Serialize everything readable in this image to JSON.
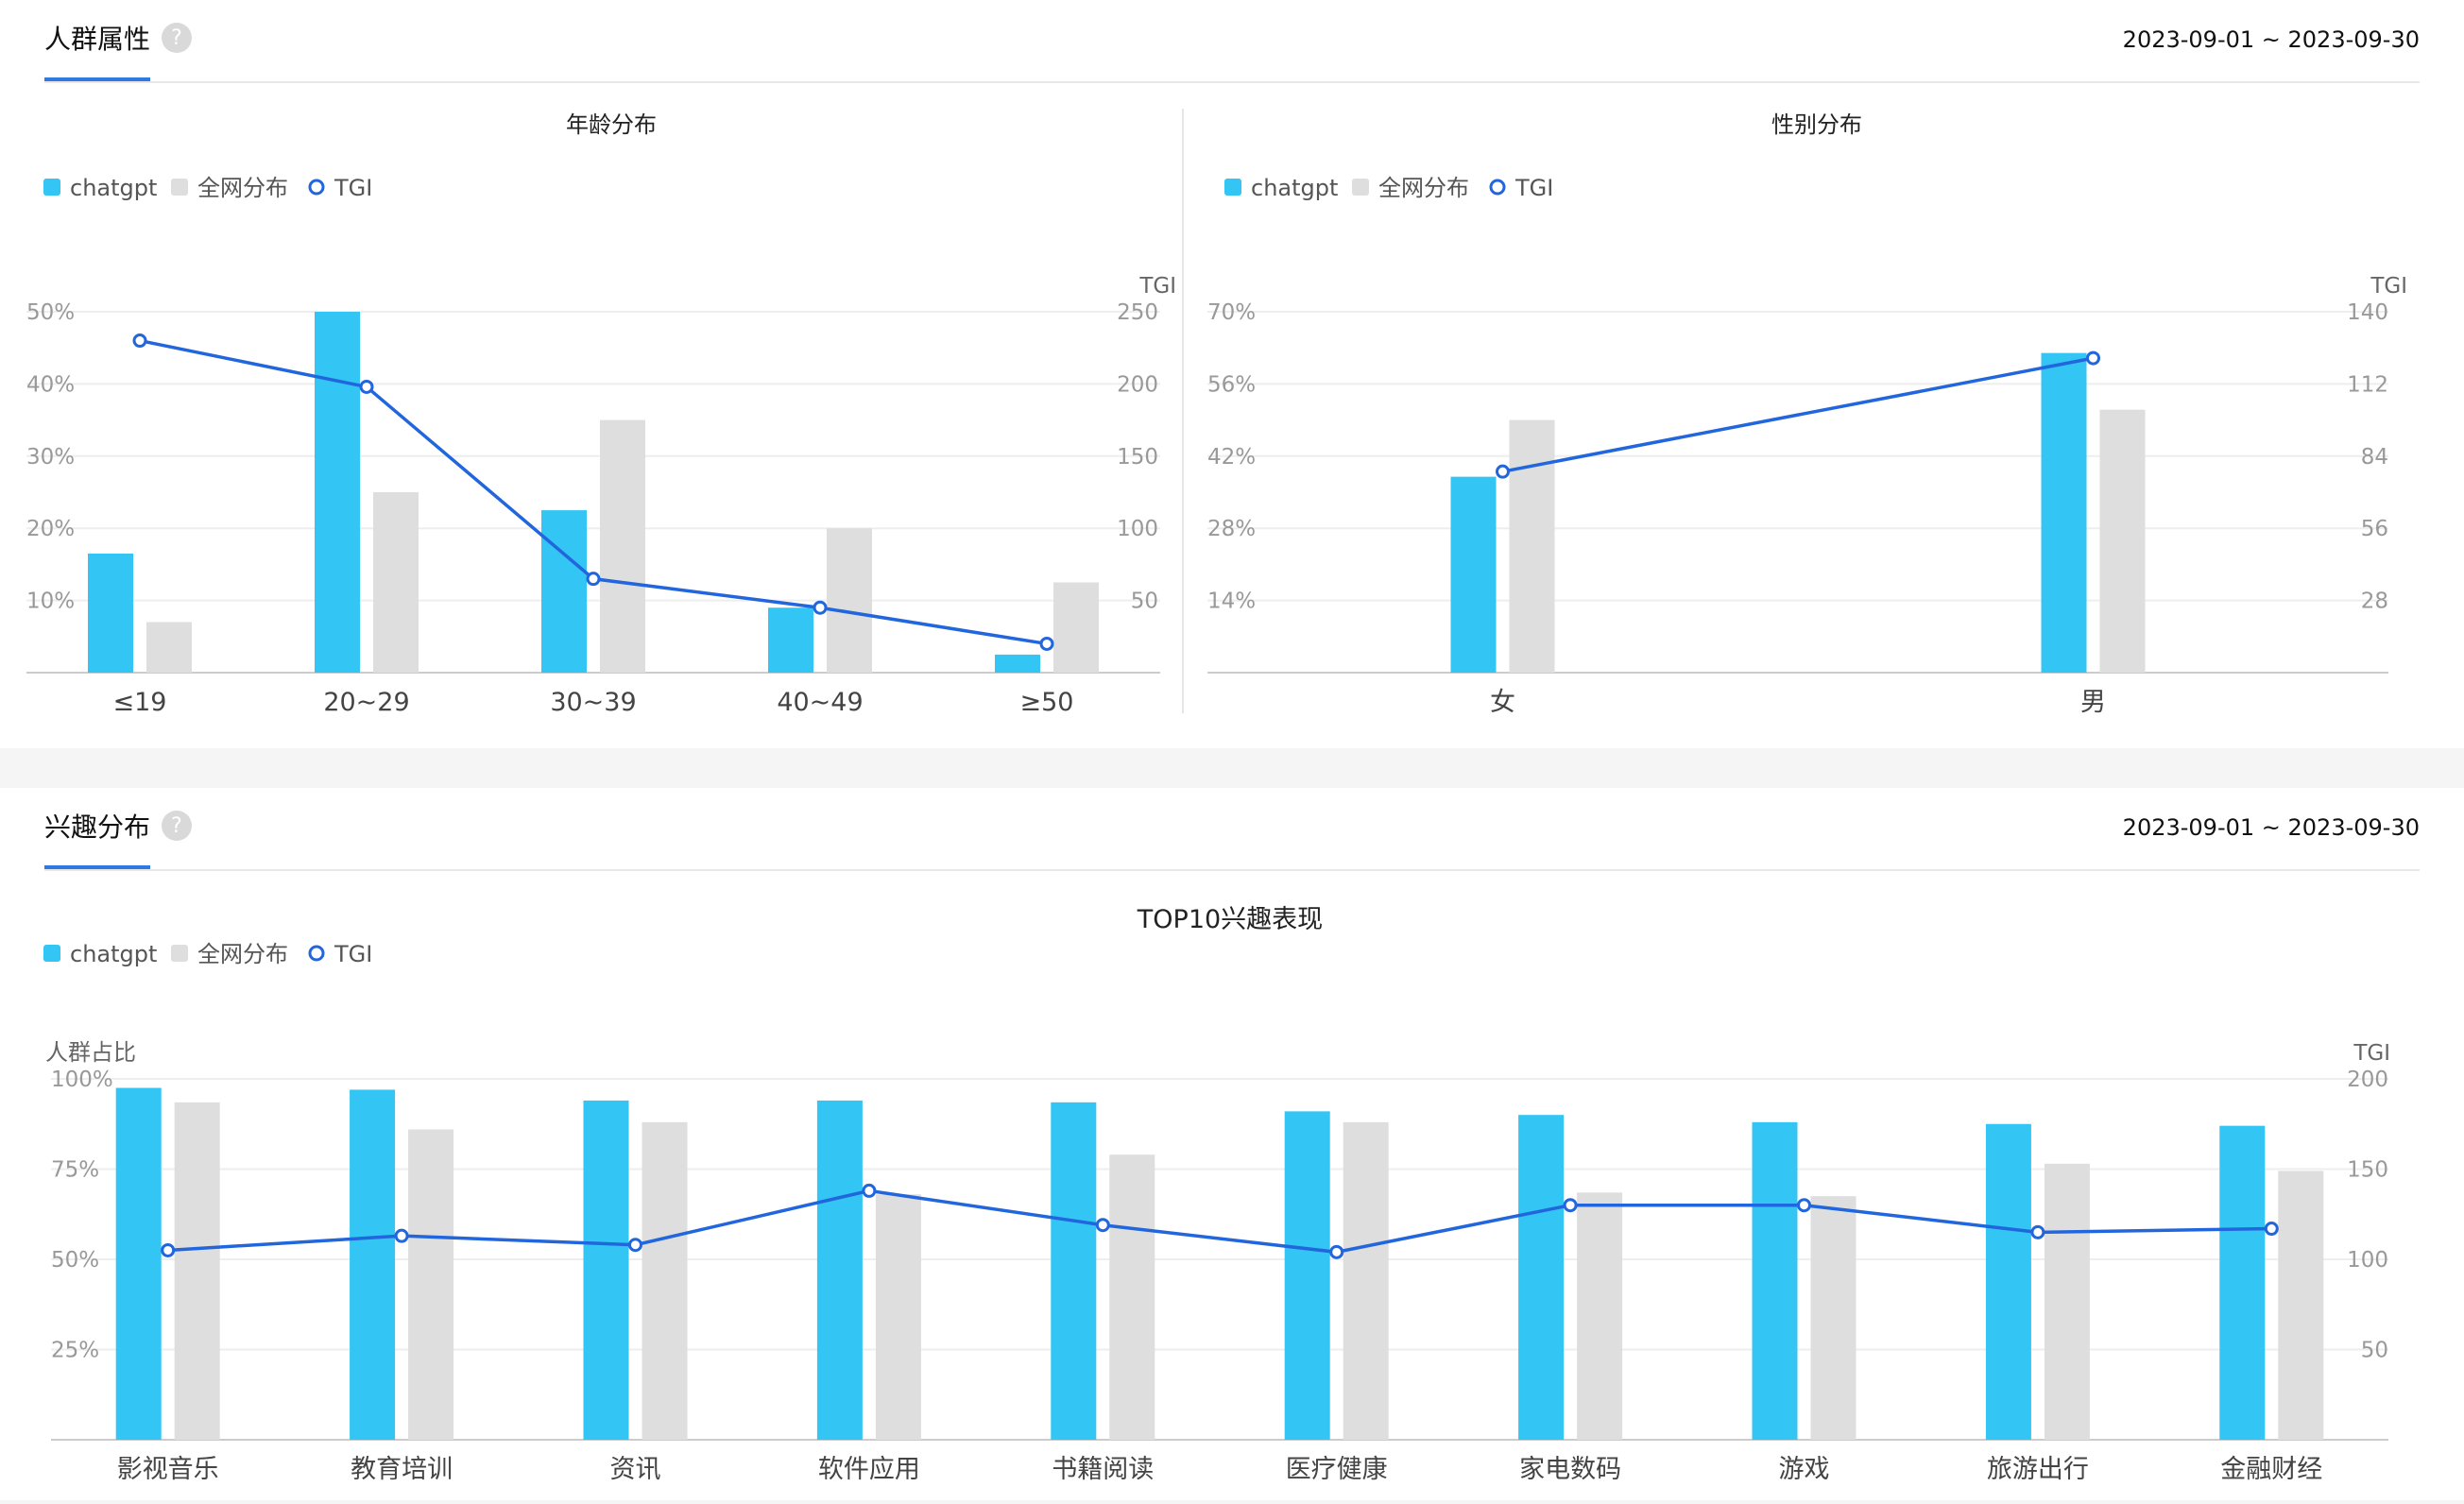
{
  "sections": {
    "top": {
      "title": "人群属性",
      "help_icon": "?",
      "date_range": "2023-09-01 ~ 2023-09-30"
    },
    "bottom": {
      "title": "兴趣分布",
      "help_icon": "?",
      "date_range": "2023-09-01 ~ 2023-09-30"
    }
  },
  "legend": {
    "series1": "chatgpt",
    "series2": "全网分布",
    "series3": "TGI"
  },
  "colors": {
    "chatgpt": "#33c5f3",
    "network": "#dedede",
    "tgi": "#2266dd",
    "accent": "#2f7ae0"
  },
  "chart_data": [
    {
      "type": "bar",
      "title": "年龄分布",
      "categories": [
        "≤19",
        "20~29",
        "30~39",
        "40~49",
        "≥50"
      ],
      "series": [
        {
          "name": "chatgpt",
          "values": [
            16.5,
            50,
            22.5,
            9,
            2.5
          ]
        },
        {
          "name": "全网分布",
          "values": [
            7,
            25,
            35,
            20,
            12.5
          ]
        },
        {
          "name": "TGI",
          "type": "line",
          "axis": "right",
          "values": [
            230,
            198,
            65,
            45,
            20
          ]
        }
      ],
      "y_left": {
        "min": 0,
        "max": 50,
        "ticks": [
          10,
          20,
          30,
          40,
          50
        ],
        "tick_labels": [
          "10%",
          "20%",
          "30%",
          "40%",
          "50%"
        ]
      },
      "y_right": {
        "label": "TGI",
        "min": 0,
        "max": 250,
        "ticks": [
          50,
          100,
          150,
          200,
          250
        ],
        "tick_labels": [
          "50",
          "100",
          "150",
          "200",
          "250"
        ]
      },
      "grid": true,
      "legend_position": "top-left"
    },
    {
      "type": "bar",
      "title": "性别分布",
      "categories": [
        "女",
        "男"
      ],
      "series": [
        {
          "name": "chatgpt",
          "values": [
            38,
            62
          ]
        },
        {
          "name": "全网分布",
          "values": [
            49,
            51
          ]
        },
        {
          "name": "TGI",
          "type": "line",
          "axis": "right",
          "values": [
            78,
            122
          ]
        }
      ],
      "y_left": {
        "min": 0,
        "max": 70,
        "ticks": [
          14,
          28,
          42,
          56,
          70
        ],
        "tick_labels": [
          "14%",
          "28%",
          "42%",
          "56%",
          "70%"
        ]
      },
      "y_right": {
        "label": "TGI",
        "min": 0,
        "max": 140,
        "ticks": [
          28,
          56,
          84,
          112,
          140
        ],
        "tick_labels": [
          "28",
          "56",
          "84",
          "112",
          "140"
        ]
      },
      "grid": true,
      "legend_position": "top-left"
    },
    {
      "type": "bar",
      "title": "TOP10兴趣表现",
      "categories": [
        "影视音乐",
        "教育培训",
        "资讯",
        "软件应用",
        "书籍阅读",
        "医疗健康",
        "家电数码",
        "游戏",
        "旅游出行",
        "金融财经"
      ],
      "series": [
        {
          "name": "chatgpt",
          "values": [
            97.5,
            97,
            94,
            94,
            93.5,
            91,
            90,
            88,
            87.5,
            87
          ]
        },
        {
          "name": "全网分布",
          "values": [
            93.5,
            86,
            88,
            68,
            79,
            88,
            68.5,
            67.5,
            76.5,
            74.5
          ]
        },
        {
          "name": "TGI",
          "type": "line",
          "axis": "right",
          "values": [
            105,
            113,
            108,
            138,
            119,
            104,
            130,
            130,
            115,
            117
          ]
        }
      ],
      "y_left": {
        "label": "人群占比",
        "min": 0,
        "max": 100,
        "ticks": [
          25,
          50,
          75,
          100
        ],
        "tick_labels": [
          "25%",
          "50%",
          "75%",
          "100%"
        ]
      },
      "y_right": {
        "label": "TGI",
        "min": 0,
        "max": 200,
        "ticks": [
          50,
          100,
          150,
          200
        ],
        "tick_labels": [
          "50",
          "100",
          "150",
          "200"
        ]
      },
      "grid": true,
      "legend_position": "top-left"
    }
  ]
}
